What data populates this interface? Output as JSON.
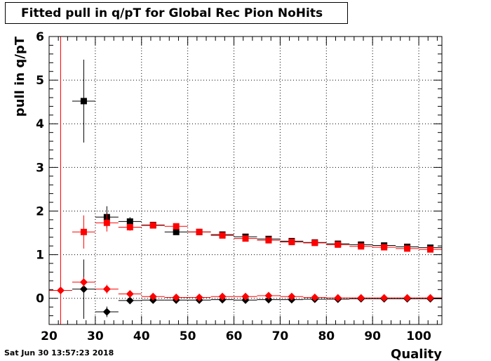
{
  "title": "Fitted pull in q/pT for Global Rec Pion NoHits",
  "timestamp": "Sat Jun 30 13:57:23 2018",
  "colors": {
    "black": "#000000",
    "red": "#ff0000",
    "grid": "#000000"
  },
  "chart_data": {
    "type": "scatter",
    "xlabel": "Quality",
    "ylabel": "pull in q/pT",
    "xlim": [
      20,
      105
    ],
    "ylim": [
      -0.6,
      6
    ],
    "x_ticks": [
      20,
      30,
      40,
      50,
      60,
      70,
      80,
      90,
      100
    ],
    "y_ticks": [
      0,
      1,
      2,
      3,
      4,
      5,
      6
    ],
    "grid": true,
    "legend": "none",
    "vertical_line_x": 22.5,
    "series": [
      {
        "color": "#000000",
        "marker": "square",
        "points": [
          {
            "x": 27.5,
            "y": 4.52,
            "yerr": 0.95,
            "xerr": 2.5
          },
          {
            "x": 32.5,
            "y": 1.86,
            "yerr": 0.25,
            "xerr": 2.5
          },
          {
            "x": 37.5,
            "y": 1.76,
            "yerr": 0.1,
            "xerr": 2.5
          },
          {
            "x": 42.5,
            "y": 1.68,
            "yerr": 0.05,
            "xerr": 2.5
          },
          {
            "x": 47.5,
            "y": 1.52,
            "yerr": 0.04,
            "xerr": 2.5
          },
          {
            "x": 52.5,
            "y": 1.52,
            "yerr": 0.03,
            "xerr": 2.5
          },
          {
            "x": 57.5,
            "y": 1.46,
            "yerr": 0.03,
            "xerr": 2.5
          },
          {
            "x": 62.5,
            "y": 1.41,
            "yerr": 0.03,
            "xerr": 2.5
          },
          {
            "x": 67.5,
            "y": 1.36,
            "yerr": 0.02,
            "xerr": 2.5
          },
          {
            "x": 72.5,
            "y": 1.31,
            "yerr": 0.02,
            "xerr": 2.5
          },
          {
            "x": 77.5,
            "y": 1.28,
            "yerr": 0.02,
            "xerr": 2.5
          },
          {
            "x": 82.5,
            "y": 1.25,
            "yerr": 0.02,
            "xerr": 2.5
          },
          {
            "x": 87.5,
            "y": 1.23,
            "yerr": 0.02,
            "xerr": 2.5
          },
          {
            "x": 92.5,
            "y": 1.21,
            "yerr": 0.02,
            "xerr": 2.5
          },
          {
            "x": 97.5,
            "y": 1.18,
            "yerr": 0.02,
            "xerr": 2.5
          },
          {
            "x": 102.5,
            "y": 1.16,
            "yerr": 0.02,
            "xerr": 2.5
          }
        ]
      },
      {
        "color": "#ff0000",
        "marker": "square",
        "points": [
          {
            "x": 27.5,
            "y": 1.52,
            "yerr": 0.38,
            "xerr": 2.5
          },
          {
            "x": 32.5,
            "y": 1.73,
            "yerr": 0.2,
            "xerr": 2.5
          },
          {
            "x": 37.5,
            "y": 1.63,
            "yerr": 0.08,
            "xerr": 2.5
          },
          {
            "x": 42.5,
            "y": 1.67,
            "yerr": 0.05,
            "xerr": 2.5
          },
          {
            "x": 47.5,
            "y": 1.65,
            "yerr": 0.04,
            "xerr": 2.5
          },
          {
            "x": 52.5,
            "y": 1.52,
            "yerr": 0.03,
            "xerr": 2.5
          },
          {
            "x": 57.5,
            "y": 1.44,
            "yerr": 0.03,
            "xerr": 2.5
          },
          {
            "x": 62.5,
            "y": 1.37,
            "yerr": 0.02,
            "xerr": 2.5
          },
          {
            "x": 67.5,
            "y": 1.33,
            "yerr": 0.02,
            "xerr": 2.5
          },
          {
            "x": 72.5,
            "y": 1.29,
            "yerr": 0.02,
            "xerr": 2.5
          },
          {
            "x": 77.5,
            "y": 1.27,
            "yerr": 0.02,
            "xerr": 2.5
          },
          {
            "x": 82.5,
            "y": 1.23,
            "yerr": 0.02,
            "xerr": 2.5
          },
          {
            "x": 87.5,
            "y": 1.19,
            "yerr": 0.02,
            "xerr": 2.5
          },
          {
            "x": 92.5,
            "y": 1.17,
            "yerr": 0.02,
            "xerr": 2.5
          },
          {
            "x": 97.5,
            "y": 1.14,
            "yerr": 0.02,
            "xerr": 2.5
          },
          {
            "x": 102.5,
            "y": 1.12,
            "yerr": 0.02,
            "xerr": 2.5
          }
        ]
      },
      {
        "color": "#000000",
        "marker": "diamond",
        "points": [
          {
            "x": 27.5,
            "y": 0.21,
            "yerr": 0.68,
            "xerr": 2.5
          },
          {
            "x": 32.5,
            "y": -0.31,
            "yerr": 0.12,
            "xerr": 2.5
          },
          {
            "x": 37.5,
            "y": -0.05,
            "yerr": 0.05,
            "xerr": 2.5
          },
          {
            "x": 42.5,
            "y": -0.04,
            "yerr": 0.03,
            "xerr": 2.5
          },
          {
            "x": 47.5,
            "y": -0.04,
            "yerr": 0.02,
            "xerr": 2.5
          },
          {
            "x": 52.5,
            "y": -0.04,
            "yerr": 0.02,
            "xerr": 2.5
          },
          {
            "x": 57.5,
            "y": -0.03,
            "yerr": 0.02,
            "xerr": 2.5
          },
          {
            "x": 62.5,
            "y": -0.04,
            "yerr": 0.02,
            "xerr": 2.5
          },
          {
            "x": 67.5,
            "y": -0.03,
            "yerr": 0.02,
            "xerr": 2.5
          },
          {
            "x": 72.5,
            "y": -0.03,
            "yerr": 0.02,
            "xerr": 2.5
          },
          {
            "x": 77.5,
            "y": -0.02,
            "yerr": 0.02,
            "xerr": 2.5
          },
          {
            "x": 82.5,
            "y": -0.02,
            "yerr": 0.02,
            "xerr": 2.5
          },
          {
            "x": 87.5,
            "y": -0.01,
            "yerr": 0.02,
            "xerr": 2.5
          },
          {
            "x": 92.5,
            "y": -0.01,
            "yerr": 0.02,
            "xerr": 2.5
          },
          {
            "x": 97.5,
            "y": -0.01,
            "yerr": 0.02,
            "xerr": 2.5
          },
          {
            "x": 102.5,
            "y": -0.01,
            "yerr": 0.02,
            "xerr": 2.5
          }
        ]
      },
      {
        "color": "#ff0000",
        "marker": "diamond",
        "points": [
          {
            "x": 22.5,
            "y": 0.18,
            "yerr": 0.05,
            "xerr": 2.5
          },
          {
            "x": 27.5,
            "y": 0.37,
            "yerr": 0.12,
            "xerr": 2.5
          },
          {
            "x": 32.5,
            "y": 0.21,
            "yerr": 0.1,
            "xerr": 2.5
          },
          {
            "x": 37.5,
            "y": 0.1,
            "yerr": 0.05,
            "xerr": 2.5
          },
          {
            "x": 42.5,
            "y": 0.04,
            "yerr": 0.03,
            "xerr": 2.5
          },
          {
            "x": 47.5,
            "y": 0.02,
            "yerr": 0.02,
            "xerr": 2.5
          },
          {
            "x": 52.5,
            "y": 0.02,
            "yerr": 0.02,
            "xerr": 2.5
          },
          {
            "x": 57.5,
            "y": 0.04,
            "yerr": 0.02,
            "xerr": 2.5
          },
          {
            "x": 62.5,
            "y": 0.04,
            "yerr": 0.02,
            "xerr": 2.5
          },
          {
            "x": 67.5,
            "y": 0.06,
            "yerr": 0.02,
            "xerr": 2.5
          },
          {
            "x": 72.5,
            "y": 0.04,
            "yerr": 0.02,
            "xerr": 2.5
          },
          {
            "x": 77.5,
            "y": 0.02,
            "yerr": 0.02,
            "xerr": 2.5
          },
          {
            "x": 82.5,
            "y": 0.01,
            "yerr": 0.02,
            "xerr": 2.5
          },
          {
            "x": 87.5,
            "y": 0.01,
            "yerr": 0.02,
            "xerr": 2.5
          },
          {
            "x": 92.5,
            "y": 0.01,
            "yerr": 0.02,
            "xerr": 2.5
          },
          {
            "x": 97.5,
            "y": 0.01,
            "yerr": 0.02,
            "xerr": 2.5
          },
          {
            "x": 102.5,
            "y": 0.01,
            "yerr": 0.02,
            "xerr": 2.5
          }
        ]
      }
    ]
  }
}
